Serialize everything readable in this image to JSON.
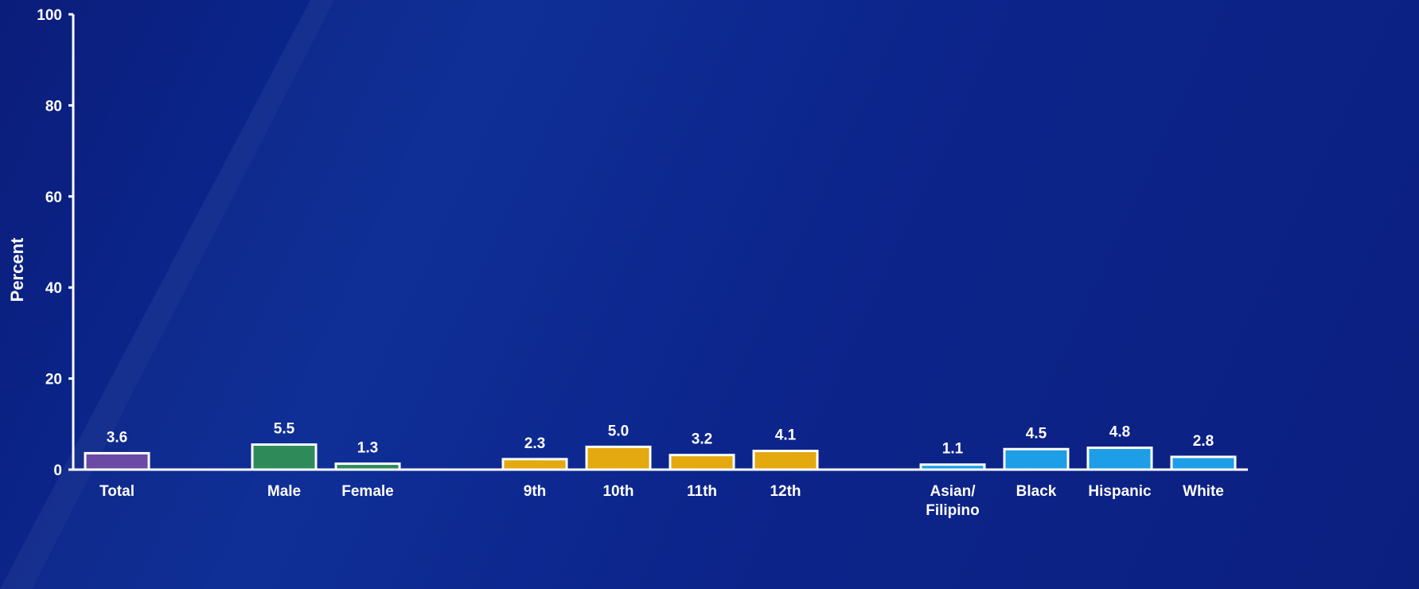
{
  "chart_data": {
    "type": "bar",
    "title": "",
    "xlabel": "",
    "ylabel": "Percent",
    "ylim": [
      0,
      100
    ],
    "yticks": [
      0,
      20,
      40,
      60,
      80,
      100
    ],
    "grid": false,
    "legend": "none",
    "groups": [
      {
        "color": "#6b4aa6",
        "bars": [
          {
            "label": "Total",
            "value": 3.6,
            "value_label": "3.6"
          }
        ]
      },
      {
        "color": "#2f8a5a",
        "bars": [
          {
            "label": "Male",
            "value": 5.5,
            "value_label": "5.5"
          },
          {
            "label": "Female",
            "value": 1.3,
            "value_label": "1.3"
          }
        ]
      },
      {
        "color": "#e3a90e",
        "bars": [
          {
            "label": "9th",
            "value": 2.3,
            "value_label": "2.3"
          },
          {
            "label": "10th",
            "value": 5.0,
            "value_label": "5.0"
          },
          {
            "label": "11th",
            "value": 3.2,
            "value_label": "3.2"
          },
          {
            "label": "12th",
            "value": 4.1,
            "value_label": "4.1"
          }
        ]
      },
      {
        "color": "#1e9ee6",
        "bars": [
          {
            "label": "Asian/\nFilipino",
            "value": 1.1,
            "value_label": "1.1"
          },
          {
            "label": "Black",
            "value": 4.5,
            "value_label": "4.5"
          },
          {
            "label": "Hispanic",
            "value": 4.8,
            "value_label": "4.8"
          },
          {
            "label": "White",
            "value": 2.8,
            "value_label": "2.8"
          }
        ]
      }
    ]
  }
}
